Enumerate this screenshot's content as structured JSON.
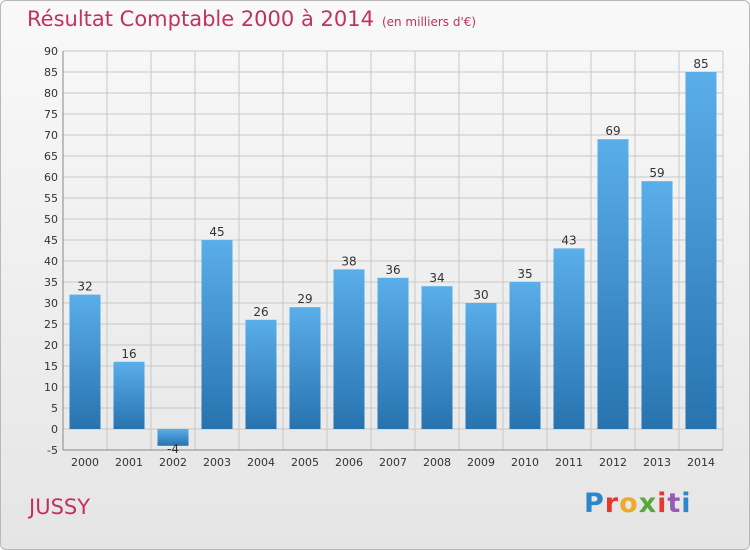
{
  "header": {
    "title": "Résultat Comptable 2000 à 2014",
    "unit": "(en milliers d'€)"
  },
  "city": "JUSSY",
  "logo": {
    "text": "Proxiti",
    "letter_colors": [
      "#2e86c9",
      "#e5392f",
      "#f0a92b",
      "#58a83c",
      "#e5392f",
      "#9b59b6",
      "#2e86c9"
    ]
  },
  "colors": {
    "bar_top": "#5aaeea",
    "bar_bottom": "#2773b0",
    "title": "#c3325f",
    "grid": "#c8c8c8"
  },
  "chart_data": {
    "type": "bar",
    "categories": [
      "2000",
      "2001",
      "2002",
      "2003",
      "2004",
      "2005",
      "2006",
      "2007",
      "2008",
      "2009",
      "2010",
      "2011",
      "2012",
      "2013",
      "2014"
    ],
    "values": [
      32,
      16,
      -4,
      45,
      26,
      29,
      38,
      36,
      34,
      30,
      35,
      43,
      69,
      59,
      85
    ],
    "data_labels": [
      "32",
      "16",
      "-4",
      "45",
      "26",
      "29",
      "38",
      "36",
      "34",
      "30",
      "35",
      "43",
      "69",
      "59",
      "85"
    ],
    "ylim": [
      -5,
      90
    ],
    "yticks": [
      -5,
      0,
      5,
      10,
      15,
      20,
      25,
      30,
      35,
      40,
      45,
      50,
      55,
      60,
      65,
      70,
      75,
      80,
      85,
      90
    ],
    "grid": true
  }
}
